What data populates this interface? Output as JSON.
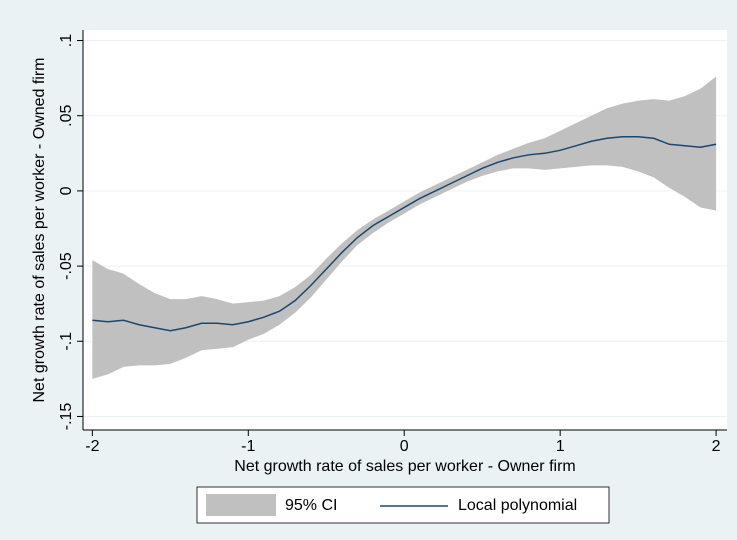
{
  "chart_data": {
    "type": "line",
    "xlabel": "Net growth rate of sales per worker - Owner firm",
    "ylabel": "Net growth rate of sales per worker - Owned firm",
    "x": [
      -2,
      -1.9,
      -1.8,
      -1.7,
      -1.6,
      -1.5,
      -1.4,
      -1.3,
      -1.2,
      -1.1,
      -1,
      -0.9,
      -0.8,
      -0.7,
      -0.6,
      -0.5,
      -0.4,
      -0.3,
      -0.2,
      -0.1,
      0,
      0.1,
      0.2,
      0.3,
      0.4,
      0.5,
      0.6,
      0.7,
      0.8,
      0.9,
      1,
      1.1,
      1.2,
      1.3,
      1.4,
      1.5,
      1.6,
      1.7,
      1.8,
      1.9,
      2
    ],
    "series": [
      {
        "name": "95% CI",
        "color": "#c0c0c0",
        "lower": [
          -0.125,
          -0.122,
          -0.117,
          -0.116,
          -0.116,
          -0.115,
          -0.111,
          -0.106,
          -0.105,
          -0.104,
          -0.099,
          -0.095,
          -0.089,
          -0.081,
          -0.071,
          -0.059,
          -0.047,
          -0.036,
          -0.028,
          -0.021,
          -0.015,
          -0.009,
          -0.004,
          0.001,
          0.006,
          0.01,
          0.013,
          0.015,
          0.015,
          0.014,
          0.015,
          0.016,
          0.017,
          0.017,
          0.016,
          0.013,
          0.009,
          0.002,
          -0.004,
          -0.011,
          -0.013
        ],
        "upper": [
          -0.046,
          -0.052,
          -0.055,
          -0.062,
          -0.068,
          -0.072,
          -0.072,
          -0.07,
          -0.072,
          -0.075,
          -0.074,
          -0.073,
          -0.07,
          -0.064,
          -0.056,
          -0.045,
          -0.035,
          -0.026,
          -0.019,
          -0.013,
          -0.007,
          -0.001,
          0.004,
          0.009,
          0.014,
          0.019,
          0.024,
          0.028,
          0.032,
          0.035,
          0.04,
          0.045,
          0.05,
          0.055,
          0.058,
          0.06,
          0.061,
          0.06,
          0.063,
          0.068,
          0.076
        ]
      },
      {
        "name": "Local polynomial",
        "color": "#1a476f",
        "values": [
          -0.086,
          -0.087,
          -0.086,
          -0.089,
          -0.091,
          -0.093,
          -0.091,
          -0.088,
          -0.088,
          -0.089,
          -0.087,
          -0.084,
          -0.08,
          -0.073,
          -0.063,
          -0.052,
          -0.041,
          -0.031,
          -0.023,
          -0.017,
          -0.011,
          -0.005,
          0.0,
          0.005,
          0.01,
          0.015,
          0.019,
          0.022,
          0.024,
          0.025,
          0.027,
          0.03,
          0.033,
          0.035,
          0.036,
          0.036,
          0.035,
          0.031,
          0.03,
          0.029,
          0.031
        ]
      }
    ],
    "xlim": [
      -2.06,
      2.07
    ],
    "xticks": [
      -2,
      -1,
      0,
      1,
      2
    ],
    "ylim": [
      -0.159,
      0.107
    ],
    "yticks": [
      {
        "value": -0.15,
        "label": "-.15"
      },
      {
        "value": -0.1,
        "label": "-.1"
      },
      {
        "value": -0.05,
        "label": "-.05"
      },
      {
        "value": 0,
        "label": "0"
      },
      {
        "value": 0.05,
        "label": ".05"
      },
      {
        "value": 0.1,
        "label": ".1"
      }
    ],
    "grid": true,
    "legend": "bottom"
  }
}
